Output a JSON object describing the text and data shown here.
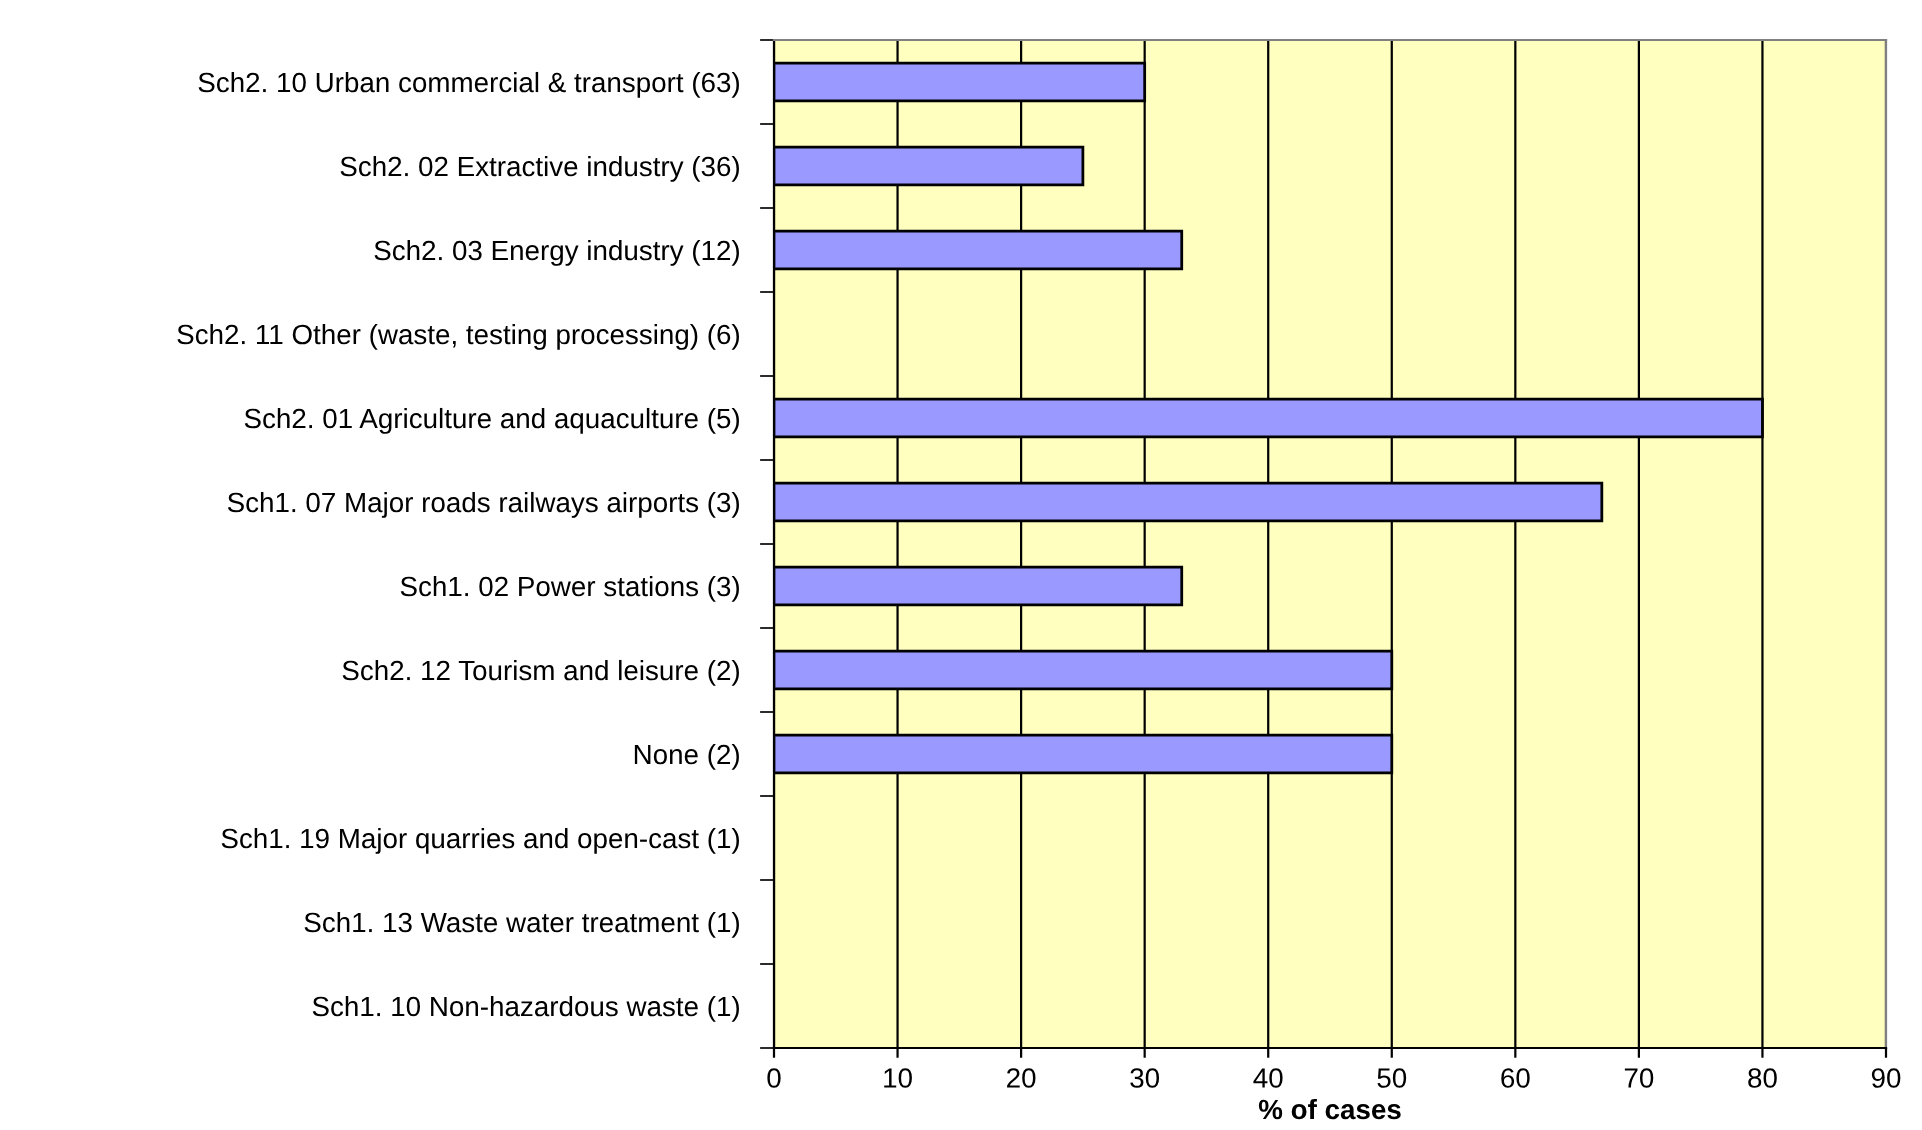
{
  "chart_data": {
    "type": "bar",
    "orientation": "horizontal",
    "xlabel": "% of cases",
    "categories": [
      "Sch2. 10 Urban commercial & transport (63)",
      "Sch2. 02 Extractive industry (36)",
      "Sch2. 03 Energy industry (12)",
      "Sch2. 11 Other (waste, testing processing) (6)",
      "Sch2. 01 Agriculture and aquaculture (5)",
      "Sch1. 07 Major roads railways airports (3)",
      "Sch1. 02 Power stations (3)",
      "Sch2. 12 Tourism and leisure (2)",
      "None (2)",
      "Sch1. 19 Major quarries and open-cast (1)",
      "Sch1. 13 Waste water treatment (1)",
      "Sch1. 10 Non-hazardous waste (1)"
    ],
    "values": [
      30,
      25,
      33,
      null,
      80,
      67,
      33,
      50,
      50,
      null,
      null,
      null
    ],
    "color": "#9999ff",
    "xlim": [
      0,
      90
    ],
    "xticks": [
      0,
      10,
      20,
      30,
      40,
      50,
      60,
      70,
      80,
      90
    ],
    "grid": "x"
  }
}
